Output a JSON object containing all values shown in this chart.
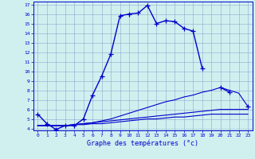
{
  "xlabel": "Graphe des températures (°c)",
  "x_hours": [
    0,
    1,
    2,
    3,
    4,
    5,
    6,
    7,
    8,
    9,
    10,
    11,
    12,
    13,
    14,
    15,
    16,
    17,
    18,
    19,
    20,
    21,
    22,
    23
  ],
  "temp_main": [
    5.5,
    4.5,
    3.9,
    4.3,
    4.3,
    5.0,
    7.5,
    9.5,
    11.8,
    15.8,
    16.0,
    16.1,
    16.9,
    15.0,
    15.3,
    15.2,
    14.5,
    14.2,
    10.3,
    null,
    8.3,
    7.8,
    null,
    6.3
  ],
  "temp_line2": [
    4.3,
    4.3,
    4.3,
    4.3,
    4.4,
    4.5,
    4.6,
    4.8,
    5.0,
    5.3,
    5.6,
    5.9,
    6.2,
    6.5,
    6.8,
    7.0,
    7.3,
    7.5,
    7.8,
    8.0,
    8.3,
    8.0,
    7.7,
    6.3
  ],
  "temp_line3": [
    4.3,
    4.3,
    4.3,
    4.3,
    4.4,
    4.5,
    4.6,
    4.7,
    4.8,
    4.9,
    5.0,
    5.1,
    5.2,
    5.3,
    5.4,
    5.5,
    5.6,
    5.7,
    5.8,
    5.9,
    6.0,
    6.0,
    6.0,
    6.0
  ],
  "temp_line4": [
    4.3,
    4.3,
    4.3,
    4.3,
    4.4,
    4.4,
    4.5,
    4.5,
    4.6,
    4.7,
    4.8,
    4.9,
    5.0,
    5.0,
    5.1,
    5.2,
    5.2,
    5.3,
    5.4,
    5.5,
    5.5,
    5.5,
    5.5,
    5.5
  ],
  "ylim": [
    4,
    17
  ],
  "yticks": [
    4,
    5,
    6,
    7,
    8,
    9,
    10,
    11,
    12,
    13,
    14,
    15,
    16,
    17
  ],
  "xlim": [
    0,
    23
  ],
  "xticks": [
    0,
    1,
    2,
    3,
    4,
    5,
    6,
    7,
    8,
    9,
    10,
    11,
    12,
    13,
    14,
    15,
    16,
    17,
    18,
    19,
    20,
    21,
    22,
    23
  ],
  "line_color": "#0000cc",
  "bg_color": "#d0f0f0",
  "grid_color": "#88aacc",
  "marker": "+",
  "marker_size": 4,
  "lw_main": 1.0,
  "lw_ref": 0.8
}
